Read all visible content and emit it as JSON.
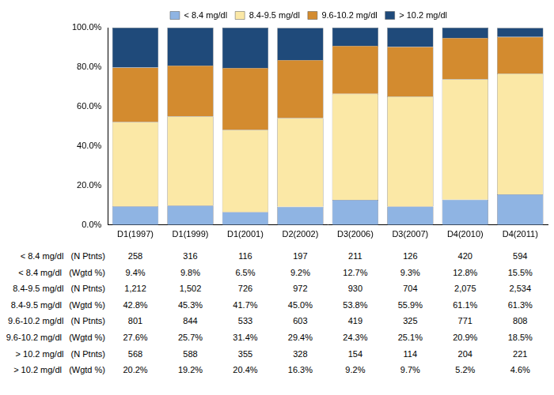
{
  "chart_data": {
    "type": "bar",
    "stacked": true,
    "grid": false,
    "legend": "top",
    "categories": [
      "D1(1997)",
      "D1(1999)",
      "D1(2001)",
      "D2(2002)",
      "D3(2006)",
      "D3(2007)",
      "D4(2010)",
      "D4(2011)"
    ],
    "ylim": [
      0,
      100
    ],
    "yticks": [
      {
        "value": 0,
        "label": "0.0%"
      },
      {
        "value": 20,
        "label": "20.0%"
      },
      {
        "value": 40,
        "label": "40.0%"
      },
      {
        "value": 60,
        "label": "60.0%"
      },
      {
        "value": 80,
        "label": "80.0%"
      },
      {
        "value": 100,
        "label": "100.0%"
      }
    ],
    "series": [
      {
        "name": "< 8.4 mg/dl",
        "color": "#8fb4e3",
        "values": [
          9.4,
          9.8,
          6.5,
          9.2,
          12.7,
          9.3,
          12.8,
          15.5
        ]
      },
      {
        "name": "8.4-9.5 mg/dl",
        "color": "#fbe8a6",
        "values": [
          42.8,
          45.3,
          41.7,
          45.0,
          53.8,
          55.9,
          61.1,
          61.3
        ]
      },
      {
        "name": "9.6-10.2 mg/dl",
        "color": "#d38b2f",
        "values": [
          27.6,
          25.7,
          31.4,
          29.4,
          24.3,
          25.1,
          20.9,
          18.5
        ]
      },
      {
        "name": "> 10.2 mg/dl",
        "color": "#1f4a7a",
        "values": [
          20.2,
          19.2,
          20.4,
          16.3,
          9.2,
          9.7,
          5.2,
          4.6
        ]
      }
    ]
  },
  "table": {
    "rows": [
      {
        "label": "< 8.4 mg/dl   (N Ptnts)",
        "cells": [
          "258",
          "316",
          "116",
          "197",
          "211",
          "126",
          "420",
          "594"
        ]
      },
      {
        "label": "< 8.4 mg/dl   (Wgtd %)",
        "cells": [
          "9.4%",
          "9.8%",
          "6.5%",
          "9.2%",
          "12.7%",
          "9.3%",
          "12.8%",
          "15.5%"
        ]
      },
      {
        "label": "8.4-9.5 mg/dl   (N Ptnts)",
        "cells": [
          "1,212",
          "1,502",
          "726",
          "972",
          "930",
          "704",
          "2,075",
          "2,534"
        ]
      },
      {
        "label": "8.4-9.5 mg/dl   (Wgtd %)",
        "cells": [
          "42.8%",
          "45.3%",
          "41.7%",
          "45.0%",
          "53.8%",
          "55.9%",
          "61.1%",
          "61.3%"
        ]
      },
      {
        "label": "9.6-10.2 mg/dl   (N Ptnts)",
        "cells": [
          "801",
          "844",
          "533",
          "603",
          "419",
          "325",
          "771",
          "808"
        ]
      },
      {
        "label": "9.6-10.2 mg/dl   (Wgtd %)",
        "cells": [
          "27.6%",
          "25.7%",
          "31.4%",
          "29.4%",
          "24.3%",
          "25.1%",
          "20.9%",
          "18.5%"
        ]
      },
      {
        "label": "> 10.2 mg/dl   (N Ptnts)",
        "cells": [
          "568",
          "588",
          "355",
          "328",
          "154",
          "114",
          "204",
          "221"
        ]
      },
      {
        "label": "> 10.2 mg/dl   (Wgtd %)",
        "cells": [
          "20.2%",
          "19.2%",
          "20.4%",
          "16.3%",
          "9.2%",
          "9.7%",
          "5.2%",
          "4.6%"
        ]
      }
    ]
  }
}
